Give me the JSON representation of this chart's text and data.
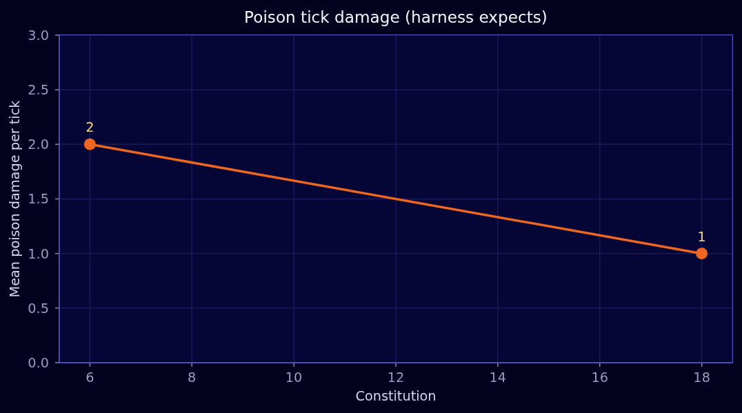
{
  "chart_data": {
    "type": "line",
    "title": "Poison tick damage (harness expects)",
    "xlabel": "Constitution",
    "ylabel": "Mean poison damage per tick",
    "x": [
      6,
      18
    ],
    "series": [
      {
        "color": "#ee661f",
        "values": [
          2,
          1
        ]
      }
    ],
    "xlim": [
      5.4,
      18.6
    ],
    "xticks": [
      6,
      8,
      10,
      12,
      14,
      16,
      18
    ],
    "ylim": [
      0,
      3
    ],
    "yticks": [
      {
        "value": 0,
        "label": "0.0"
      },
      {
        "value": 0.5,
        "label": "0.5"
      },
      {
        "value": 1,
        "label": "1.0"
      },
      {
        "value": 1.5,
        "label": "1.5"
      },
      {
        "value": 2,
        "label": "2.0"
      },
      {
        "value": 2.5,
        "label": "2.5"
      },
      {
        "value": 3,
        "label": "3.0"
      }
    ],
    "grid": true,
    "marker": "circle",
    "line_style": "solid",
    "data_labels": true
  }
}
